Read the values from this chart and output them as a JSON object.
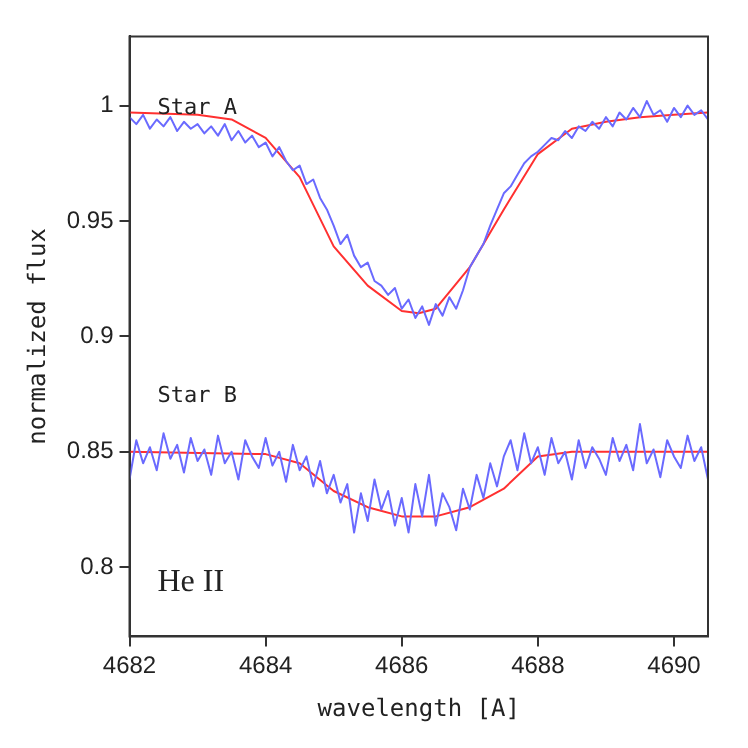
{
  "chart_data": {
    "type": "line",
    "xlabel": "wavelength [A]",
    "ylabel": "normalized flux",
    "xlim": [
      4682,
      4690.5
    ],
    "ylim": [
      0.77,
      1.03
    ],
    "xticks": [
      4682,
      4684,
      4686,
      4688,
      4690
    ],
    "yticks": [
      0.8,
      0.85,
      0.9,
      0.95,
      1
    ],
    "grid": false,
    "legend": false,
    "annotations": [
      "Star A",
      "Star B",
      "He II"
    ],
    "series": [
      {
        "color": "#6a6aff",
        "x": [
          4682.0,
          4682.1,
          4682.2,
          4682.3,
          4682.4,
          4682.5,
          4682.6,
          4682.7,
          4682.8,
          4682.9,
          4683.0,
          4683.1,
          4683.2,
          4683.3,
          4683.4,
          4683.5,
          4683.6,
          4683.7,
          4683.8,
          4683.9,
          4684.0,
          4684.1,
          4684.2,
          4684.3,
          4684.4,
          4684.5,
          4684.6,
          4684.7,
          4684.8,
          4684.9,
          4685.0,
          4685.1,
          4685.2,
          4685.3,
          4685.4,
          4685.5,
          4685.6,
          4685.7,
          4685.8,
          4685.9,
          4686.0,
          4686.1,
          4686.2,
          4686.3,
          4686.4,
          4686.5,
          4686.6,
          4686.7,
          4686.8,
          4686.9,
          4687.0,
          4687.1,
          4687.2,
          4687.3,
          4687.4,
          4687.5,
          4687.6,
          4687.7,
          4687.8,
          4687.9,
          4688.0,
          4688.1,
          4688.2,
          4688.3,
          4688.4,
          4688.5,
          4688.6,
          4688.7,
          4688.8,
          4688.9,
          4689.0,
          4689.1,
          4689.2,
          4689.3,
          4689.4,
          4689.5,
          4689.6,
          4689.7,
          4689.8,
          4689.9,
          4690.0,
          4690.1,
          4690.2,
          4690.3,
          4690.4,
          4690.5
        ],
        "values": [
          0.995,
          0.992,
          0.996,
          0.99,
          0.994,
          0.991,
          0.995,
          0.989,
          0.993,
          0.99,
          0.992,
          0.988,
          0.991,
          0.987,
          0.992,
          0.985,
          0.989,
          0.984,
          0.987,
          0.982,
          0.984,
          0.978,
          0.982,
          0.976,
          0.972,
          0.974,
          0.966,
          0.968,
          0.96,
          0.955,
          0.948,
          0.94,
          0.944,
          0.935,
          0.93,
          0.932,
          0.924,
          0.922,
          0.918,
          0.921,
          0.912,
          0.916,
          0.908,
          0.913,
          0.905,
          0.914,
          0.909,
          0.917,
          0.912,
          0.92,
          0.93,
          0.935,
          0.94,
          0.948,
          0.955,
          0.962,
          0.965,
          0.97,
          0.975,
          0.978,
          0.98,
          0.983,
          0.986,
          0.985,
          0.989,
          0.986,
          0.991,
          0.989,
          0.993,
          0.99,
          0.995,
          0.991,
          0.997,
          0.994,
          0.999,
          0.995,
          1.002,
          0.996,
          0.998,
          0.993,
          0.999,
          0.995,
          1.0,
          0.996,
          0.998,
          0.994
        ]
      },
      {
        "color": "#ff3030",
        "x": [
          4682,
          4683,
          4683.5,
          4684,
          4684.5,
          4685,
          4685.5,
          4686,
          4686.25,
          4686.5,
          4687,
          4687.5,
          4688,
          4688.5,
          4689,
          4689.5,
          4690,
          4690.5
        ],
        "values": [
          0.997,
          0.996,
          0.994,
          0.986,
          0.969,
          0.939,
          0.922,
          0.911,
          0.91,
          0.912,
          0.93,
          0.955,
          0.979,
          0.99,
          0.993,
          0.995,
          0.996,
          0.997
        ]
      },
      {
        "color": "#6a6aff",
        "x": [
          4682.0,
          4682.1,
          4682.2,
          4682.3,
          4682.4,
          4682.5,
          4682.6,
          4682.7,
          4682.8,
          4682.9,
          4683.0,
          4683.1,
          4683.2,
          4683.3,
          4683.4,
          4683.5,
          4683.6,
          4683.7,
          4683.8,
          4683.9,
          4684.0,
          4684.1,
          4684.2,
          4684.3,
          4684.4,
          4684.5,
          4684.6,
          4684.7,
          4684.8,
          4684.9,
          4685.0,
          4685.1,
          4685.2,
          4685.3,
          4685.4,
          4685.5,
          4685.6,
          4685.7,
          4685.8,
          4685.9,
          4686.0,
          4686.1,
          4686.2,
          4686.3,
          4686.4,
          4686.5,
          4686.6,
          4686.7,
          4686.8,
          4686.9,
          4687.0,
          4687.1,
          4687.2,
          4687.3,
          4687.4,
          4687.5,
          4687.6,
          4687.7,
          4687.8,
          4687.9,
          4688.0,
          4688.1,
          4688.2,
          4688.3,
          4688.4,
          4688.5,
          4688.6,
          4688.7,
          4688.8,
          4688.9,
          4689.0,
          4689.1,
          4689.2,
          4689.3,
          4689.4,
          4689.5,
          4689.6,
          4689.7,
          4689.8,
          4689.9,
          4690.0,
          4690.1,
          4690.2,
          4690.3,
          4690.4,
          4690.5
        ],
        "values": [
          0.838,
          0.855,
          0.845,
          0.852,
          0.842,
          0.858,
          0.847,
          0.853,
          0.841,
          0.856,
          0.846,
          0.851,
          0.84,
          0.857,
          0.845,
          0.85,
          0.838,
          0.855,
          0.848,
          0.843,
          0.856,
          0.844,
          0.85,
          0.837,
          0.853,
          0.842,
          0.848,
          0.835,
          0.846,
          0.832,
          0.84,
          0.828,
          0.836,
          0.815,
          0.832,
          0.82,
          0.838,
          0.825,
          0.833,
          0.818,
          0.83,
          0.815,
          0.836,
          0.822,
          0.84,
          0.818,
          0.832,
          0.826,
          0.816,
          0.834,
          0.825,
          0.84,
          0.83,
          0.845,
          0.835,
          0.848,
          0.855,
          0.842,
          0.858,
          0.845,
          0.852,
          0.84,
          0.856,
          0.845,
          0.85,
          0.838,
          0.855,
          0.843,
          0.852,
          0.847,
          0.84,
          0.856,
          0.846,
          0.853,
          0.842,
          0.862,
          0.845,
          0.851,
          0.839,
          0.855,
          0.848,
          0.843,
          0.857,
          0.846,
          0.852,
          0.838
        ]
      },
      {
        "color": "#ff3030",
        "x": [
          4682,
          4684,
          4684.5,
          4685,
          4685.5,
          4686,
          4686.5,
          4687,
          4687.5,
          4688,
          4688.5,
          4690.5
        ],
        "values": [
          0.85,
          0.849,
          0.845,
          0.833,
          0.826,
          0.822,
          0.822,
          0.826,
          0.834,
          0.848,
          0.85,
          0.85
        ]
      }
    ]
  }
}
